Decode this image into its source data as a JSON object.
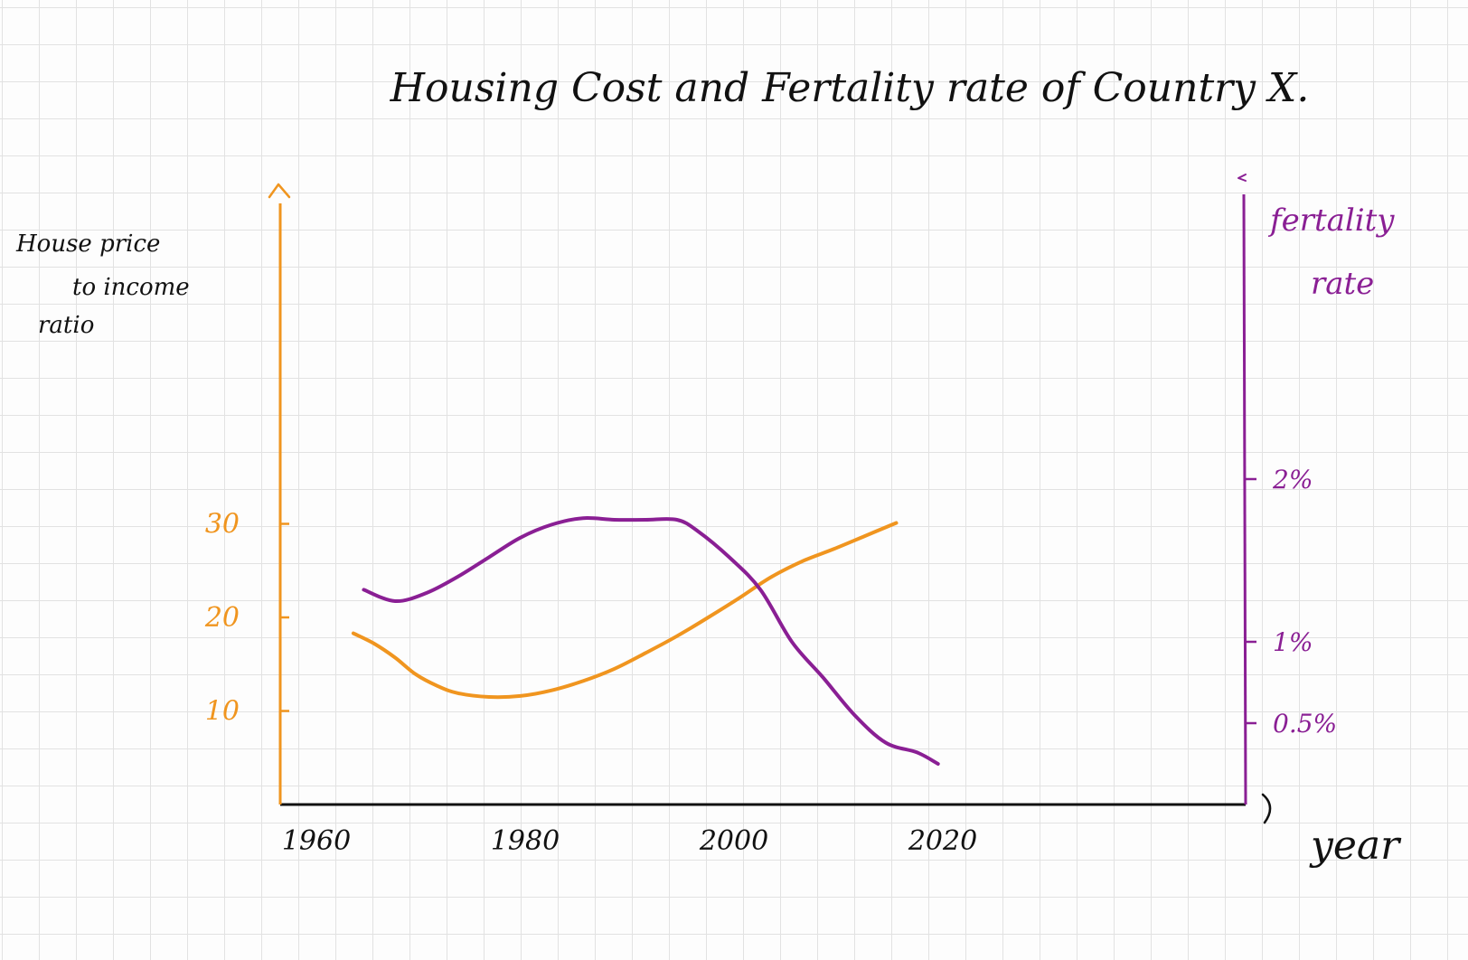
{
  "chart_data": {
    "type": "line",
    "title": "Housing Cost and Fertality rate of Country X.",
    "xlabel": "year",
    "ylabel_left": "House price to income ratio",
    "ylabel_right": "fertality rate",
    "xlim": [
      1960,
      2030
    ],
    "y_left_lim": [
      0,
      35
    ],
    "y_right_lim": [
      0,
      3
    ],
    "x_ticks": [
      {
        "value": 1960,
        "label": "1960"
      },
      {
        "value": 1980,
        "label": "1980"
      },
      {
        "value": 2000,
        "label": "2000"
      },
      {
        "value": 2020,
        "label": "2020"
      }
    ],
    "y_left_ticks": [
      {
        "value": 10,
        "label": "10"
      },
      {
        "value": 20,
        "label": "20"
      },
      {
        "value": 30,
        "label": "30"
      }
    ],
    "y_right_ticks": [
      {
        "value": 0.5,
        "label": "0.5%"
      },
      {
        "value": 1,
        "label": "1%"
      },
      {
        "value": 2,
        "label": "2%"
      }
    ],
    "colors": {
      "house": "#f0951f",
      "fertility": "#8a1f94",
      "axis": "#111111"
    },
    "series": [
      {
        "key": "house",
        "axis": "left",
        "x": [
          1967,
          1969,
          1971,
          1973,
          1975,
          1977,
          1980,
          1983,
          1986,
          1989,
          1992,
          1995,
          1998,
          2001,
          2004,
          2007,
          2010,
          2013,
          2016,
          2019
        ],
        "values": [
          18.3,
          17.2,
          15.7,
          13.9,
          12.7,
          11.9,
          11.5,
          11.6,
          12.2,
          13.2,
          14.5,
          16.2,
          18.0,
          20.0,
          22.1,
          24.3,
          26.0,
          27.3,
          28.7,
          30.1
        ]
      },
      {
        "key": "fertility",
        "axis": "right",
        "x": [
          1968,
          1971,
          1974,
          1977,
          1980,
          1983,
          1986,
          1989,
          1992,
          1995,
          1998,
          2000,
          2003,
          2006,
          2009,
          2012,
          2015,
          2018,
          2021,
          2023
        ],
        "values": [
          1.32,
          1.25,
          1.3,
          1.4,
          1.52,
          1.64,
          1.72,
          1.76,
          1.75,
          1.75,
          1.75,
          1.68,
          1.52,
          1.32,
          1.0,
          0.78,
          0.55,
          0.38,
          0.32,
          0.25
        ]
      }
    ]
  }
}
